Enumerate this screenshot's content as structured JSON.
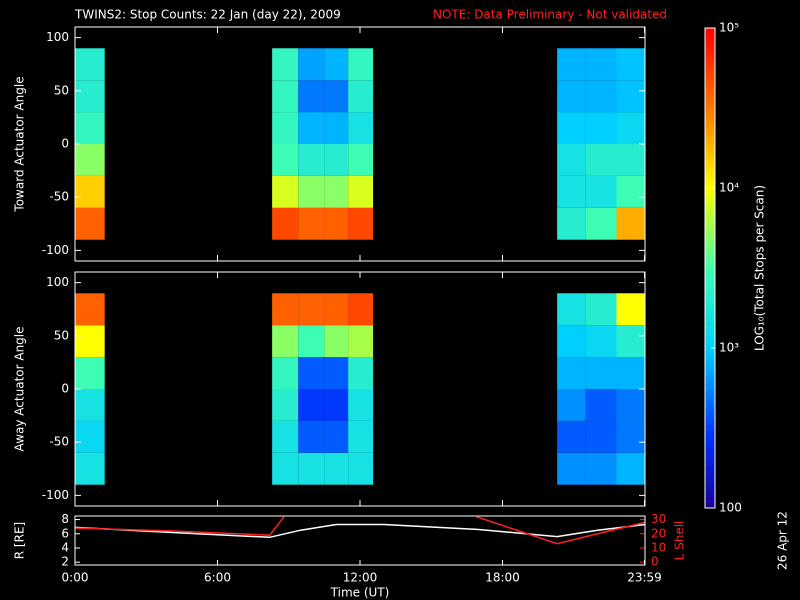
{
  "chart_data": [
    {
      "type": "heatmap",
      "title": "TWINS2: Stop Counts: 22 Jan (day  22), 2009",
      "note": "NOTE: Data Preliminary - Not validated",
      "ylabel": "Toward Actuator Angle",
      "xbins": [
        0,
        1.25,
        8.3,
        9.4,
        10.5,
        11.5,
        12.55,
        20.3,
        21.5,
        22.8,
        24
      ],
      "ybins": [
        -90,
        -60,
        -30,
        0,
        30,
        60,
        90
      ],
      "z": [
        [
          40000,
          null,
          50000,
          40000,
          40000,
          50000,
          null,
          2000,
          3000,
          20000
        ],
        [
          15000,
          null,
          8000,
          5000,
          5000,
          8000,
          null,
          1500,
          1500,
          3000
        ],
        [
          5000,
          null,
          3000,
          2000,
          2000,
          3000,
          null,
          1500,
          2000,
          2000
        ],
        [
          2500,
          null,
          2500,
          800,
          800,
          1500,
          null,
          1000,
          1000,
          1200
        ],
        [
          2000,
          null,
          2500,
          500,
          500,
          2000,
          null,
          800,
          800,
          900
        ],
        [
          2000,
          null,
          2500,
          700,
          800,
          2500,
          null,
          800,
          800,
          900
        ]
      ],
      "xlim": [
        0,
        24
      ],
      "ylim": [
        -110,
        110
      ],
      "yticks": [
        -100,
        -50,
        0,
        50,
        100
      ],
      "zlim": [
        100,
        100000
      ],
      "zlog": true,
      "zticks": [
        {
          "value": 100,
          "label": "100"
        },
        {
          "value": 1000,
          "label": "10³"
        },
        {
          "value": 10000,
          "label": "10⁴"
        },
        {
          "value": 100000,
          "label": "10⁵"
        }
      ],
      "zlabel": "LOG₁₀(Total Stops per Scan)"
    },
    {
      "type": "heatmap",
      "ylabel": "Away Actuator Angle",
      "xbins": [
        0,
        1.25,
        8.3,
        9.4,
        10.5,
        11.5,
        12.55,
        20.3,
        21.5,
        22.8,
        24
      ],
      "ybins": [
        -90,
        -60,
        -30,
        0,
        30,
        60,
        90
      ],
      "z": [
        [
          1500,
          null,
          1500,
          1500,
          1500,
          1500,
          null,
          600,
          600,
          800
        ],
        [
          1200,
          null,
          1500,
          400,
          400,
          1500,
          null,
          400,
          400,
          500
        ],
        [
          1500,
          null,
          2000,
          300,
          300,
          1500,
          null,
          600,
          400,
          500
        ],
        [
          3000,
          null,
          2500,
          400,
          400,
          2000,
          null,
          800,
          800,
          800
        ],
        [
          10000,
          null,
          5000,
          3000,
          5000,
          6000,
          null,
          1000,
          1200,
          2000
        ],
        [
          40000,
          null,
          40000,
          40000,
          40000,
          50000,
          null,
          1500,
          2000,
          10000
        ]
      ],
      "xlim": [
        0,
        24
      ],
      "ylim": [
        -110,
        110
      ],
      "yticks": [
        -100,
        -50,
        0,
        50,
        100
      ]
    },
    {
      "type": "line",
      "xlabel": "Time (UT)",
      "ylabel": "R [RE]",
      "y2label": "L Shell",
      "xlim": [
        0,
        24
      ],
      "xticks": [
        {
          "value": 0,
          "label": "0:00"
        },
        {
          "value": 6,
          "label": "6:00"
        },
        {
          "value": 12,
          "label": "12:00"
        },
        {
          "value": 18,
          "label": "18:00"
        },
        {
          "value": 23.98,
          "label": "23:59"
        }
      ],
      "ylim": [
        1.6,
        8.5
      ],
      "yticks": [
        2,
        4,
        6,
        8
      ],
      "y2lim": [
        -2,
        32.5
      ],
      "y2ticks": [
        0,
        10,
        20,
        30
      ],
      "series": [
        {
          "color": "#ffffff",
          "x": [
            0,
            4,
            8.2,
            9.5,
            11,
            13,
            17,
            20.3,
            22,
            24
          ],
          "values": [
            6.9,
            6.2,
            5.5,
            6.5,
            7.3,
            7.3,
            6.6,
            5.6,
            6.5,
            7.3
          ]
        },
        {
          "color": "#ff2020",
          "axis": "y2",
          "x": [
            0,
            4,
            8.2,
            8.8,
            12,
            16.9,
            20.3,
            22,
            24
          ],
          "values": [
            24,
            22,
            19,
            32,
            null,
            32,
            13,
            20,
            28
          ]
        }
      ]
    }
  ],
  "footer": "26 Apr 12"
}
